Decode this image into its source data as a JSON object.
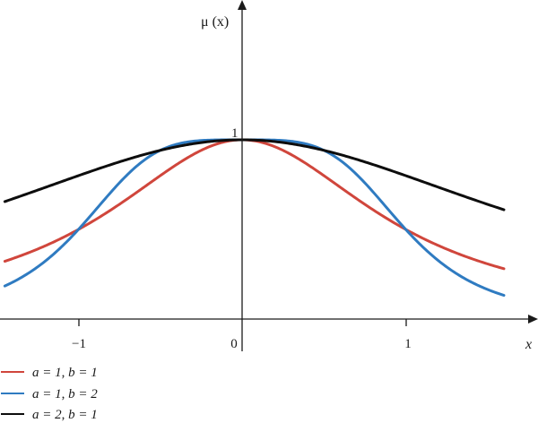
{
  "chart_data": {
    "type": "line",
    "title": "",
    "xlabel": "x",
    "ylabel": "μ (x)",
    "xlim": [
      -1.45,
      1.6
    ],
    "ylim": [
      -0.27,
      1.05
    ],
    "x_ticks": [
      {
        "value": -1,
        "label": "−1"
      },
      {
        "value": 0,
        "label": "0"
      },
      {
        "value": 1,
        "label": "1"
      }
    ],
    "peak_label": "1",
    "grid": false,
    "legend_position": "bottom-left",
    "series": [
      {
        "name_a": "a = 1",
        "name_b": "b = 1",
        "a": 1,
        "b": 1,
        "color": "#d0463c"
      },
      {
        "name_a": "a = 1",
        "name_b": "b = 2",
        "a": 1,
        "b": 2,
        "color": "#2f7bc1"
      },
      {
        "name_a": "a = 2",
        "name_b": "b = 1",
        "a": 2,
        "b": 1,
        "color": "#0d0d0d"
      }
    ]
  }
}
